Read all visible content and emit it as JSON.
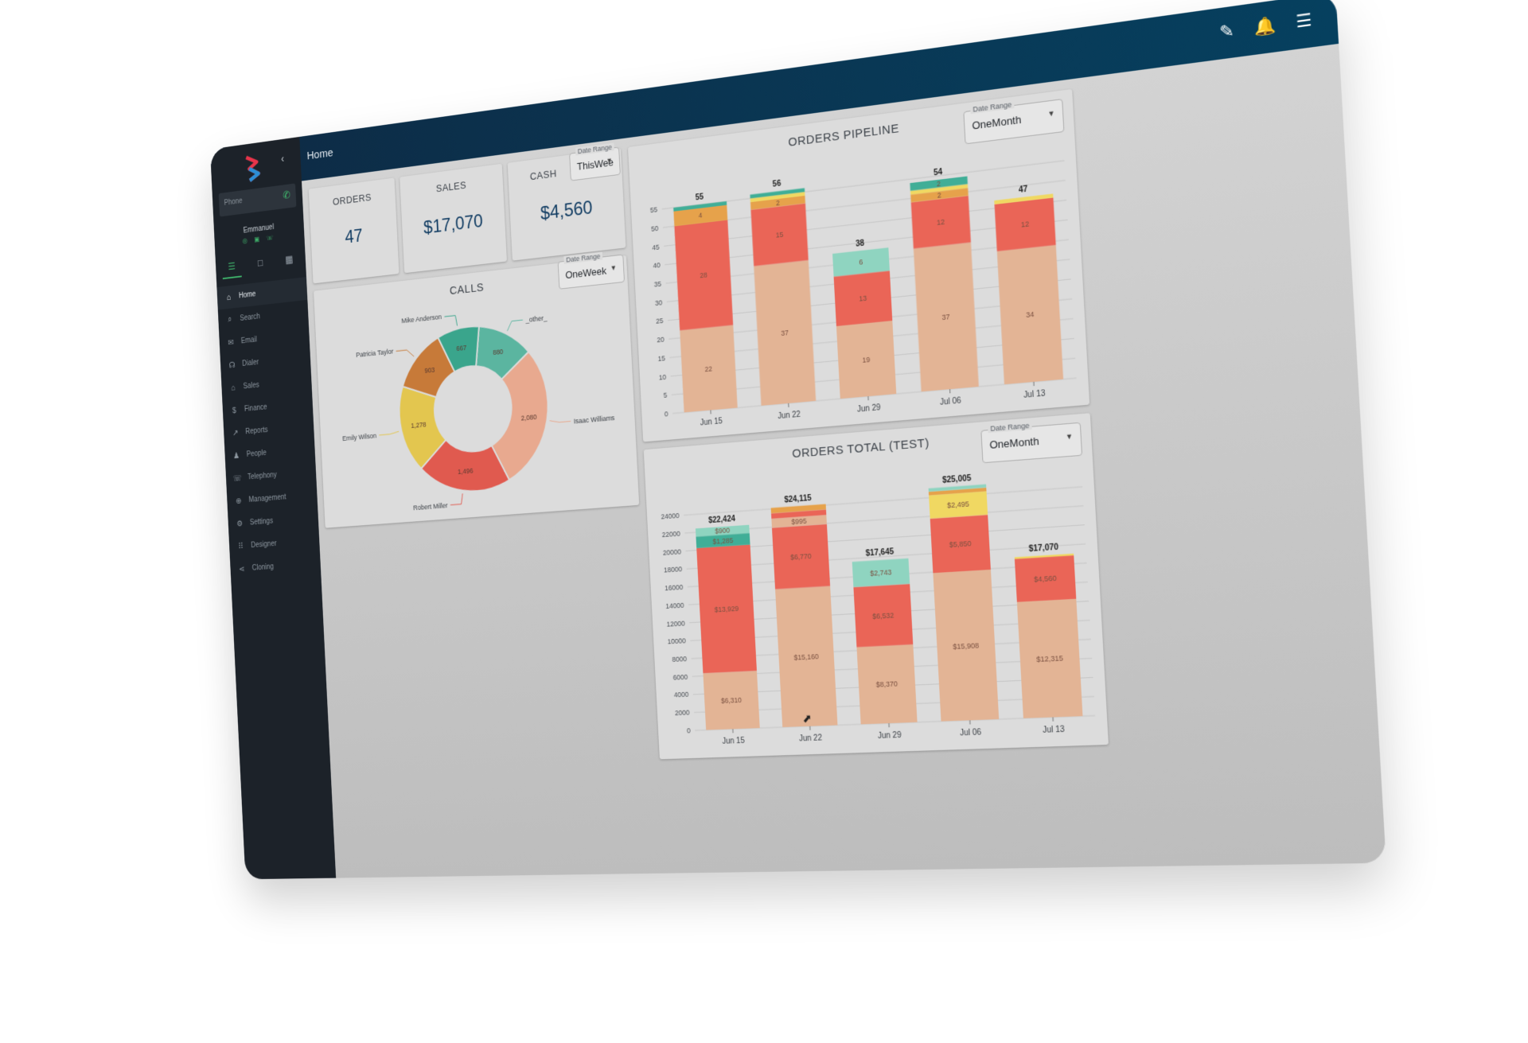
{
  "header": {
    "breadcrumb": "Home"
  },
  "sidebar": {
    "phone_label": "Phone",
    "user_name": "Emmanuel",
    "status_icons": "◎ ▣ ☏",
    "nav": [
      {
        "label": "Home",
        "icon": "⌂"
      },
      {
        "label": "Search",
        "icon": "⌕"
      },
      {
        "label": "Email",
        "icon": "✉"
      },
      {
        "label": "Dialer",
        "icon": "☊"
      },
      {
        "label": "Sales",
        "icon": "⌂"
      },
      {
        "label": "Finance",
        "icon": "$"
      },
      {
        "label": "Reports",
        "icon": "↗"
      },
      {
        "label": "People",
        "icon": "♟"
      },
      {
        "label": "Telephony",
        "icon": "☏"
      },
      {
        "label": "Management",
        "icon": "⊕"
      },
      {
        "label": "Settings",
        "icon": "⚙"
      },
      {
        "label": "Designer",
        "icon": "⠿"
      },
      {
        "label": "Cloning",
        "icon": "⋖"
      }
    ]
  },
  "kpis": {
    "orders": {
      "title": "ORDERS",
      "value": "47"
    },
    "sales": {
      "title": "SALES",
      "value": "$17,070"
    },
    "cash": {
      "title": "CASH",
      "value": "$4,560"
    },
    "date_range": {
      "label": "Date Range",
      "value": "ThisWee"
    }
  },
  "calls": {
    "title": "CALLS",
    "date_range": {
      "label": "Date Range",
      "value": "OneWeek"
    }
  },
  "pipeline": {
    "title": "ORDERS PIPELINE",
    "date_range": {
      "label": "Date Range",
      "value": "OneMonth"
    }
  },
  "totals": {
    "title": "ORDERS TOTAL (TEST)",
    "date_range": {
      "label": "Date Range",
      "value": "OneMonth"
    }
  },
  "colors": {
    "stage1": "#e3b495",
    "stage2": "#ea6557",
    "stage3": "#8fd4c0",
    "stage4": "#e6a24b",
    "stage5": "#f0d862",
    "stage6": "#40ae97",
    "pie": [
      "#5bb5a0",
      "#e8a98f",
      "#e05a4f",
      "#e3c64f",
      "#c77a39",
      "#3aa58c"
    ]
  },
  "chart_data": [
    {
      "id": "calls",
      "type": "pie",
      "title": "CALLS",
      "labels": [
        "_other_",
        "Isaac Williams",
        "Robert Miller",
        "Emily Wilson",
        "Patricia Taylor",
        "Mike Anderson"
      ],
      "values": [
        880,
        2080,
        1496,
        1278,
        903,
        667
      ],
      "value_labels": [
        "880",
        "2,080",
        "1,496",
        "1,278",
        "903",
        "667"
      ]
    },
    {
      "id": "pipeline",
      "type": "bar",
      "title": "ORDERS PIPELINE",
      "categories": [
        "Jun 15",
        "Jun 22",
        "Jun 29",
        "Jul 06",
        "Jul 13"
      ],
      "yticks": [
        0,
        5,
        10,
        15,
        20,
        25,
        30,
        35,
        40,
        45,
        50,
        55
      ],
      "ylim": [
        0,
        58
      ],
      "totals": [
        "55",
        "56",
        "38",
        "54",
        "47"
      ],
      "series": [
        {
          "name": "stage1",
          "color_key": "stage1",
          "values": [
            22,
            37,
            19,
            37,
            34
          ]
        },
        {
          "name": "stage2",
          "color_key": "stage2",
          "values": [
            28,
            15,
            13,
            12,
            12
          ]
        },
        {
          "name": "stage3",
          "color_key": "stage3",
          "values": [
            0,
            0,
            6,
            0,
            0
          ]
        },
        {
          "name": "stage4",
          "color_key": "stage4",
          "values": [
            4,
            2,
            0,
            2,
            0
          ]
        },
        {
          "name": "stage5",
          "color_key": "stage5",
          "values": [
            0,
            1,
            0,
            1,
            1
          ]
        },
        {
          "name": "stage6",
          "color_key": "stage6",
          "values": [
            1,
            1,
            0,
            2,
            0
          ]
        }
      ]
    },
    {
      "id": "totals",
      "type": "bar",
      "title": "ORDERS TOTAL (TEST)",
      "categories": [
        "Jun 15",
        "Jun 22",
        "Jun 29",
        "Jul 06",
        "Jul 13"
      ],
      "yticks": [
        0,
        2000,
        4000,
        6000,
        8000,
        10000,
        12000,
        14000,
        16000,
        18000,
        20000,
        22000,
        24000
      ],
      "ylim": [
        0,
        25500
      ],
      "totals": [
        "$22,424",
        "$24,115",
        "$17,645",
        "$25,005",
        "$17,070"
      ],
      "series": [
        {
          "name": "stage1",
          "color_key": "stage1",
          "values": [
            6310,
            15160,
            8370,
            15908,
            12315
          ],
          "labels": [
            "$6,310",
            "$15,160",
            "$8,370",
            "$15,908",
            "$12,315"
          ]
        },
        {
          "name": "stage2",
          "color_key": "stage2",
          "values": [
            13929,
            6770,
            6532,
            5850,
            4560
          ],
          "labels": [
            "$13,929",
            "$6,770",
            "$6,532",
            "$5,850",
            "$4,560"
          ]
        },
        {
          "name": "stage6",
          "color_key": "stage6",
          "values": [
            1285,
            0,
            0,
            0,
            0
          ],
          "labels": [
            "$1,285",
            "",
            "",
            "",
            ""
          ]
        },
        {
          "name": "stage3",
          "color_key": "stage3",
          "values": [
            900,
            0,
            2743,
            0,
            0
          ],
          "labels": [
            "$900",
            "",
            "$2,743",
            "",
            ""
          ]
        },
        {
          "name": "stage1b",
          "color_key": "stage1",
          "values": [
            0,
            995,
            0,
            0,
            0
          ],
          "labels": [
            "",
            "$995",
            "",
            "",
            ""
          ]
        },
        {
          "name": "stage5",
          "color_key": "stage5",
          "values": [
            0,
            0,
            0,
            2495,
            195
          ],
          "labels": [
            "",
            "",
            "",
            "$2,495",
            ""
          ]
        },
        {
          "name": "stage2b",
          "color_key": "stage2",
          "values": [
            0,
            600,
            0,
            0,
            0
          ],
          "labels": [
            "",
            "",
            "",
            "",
            ""
          ]
        },
        {
          "name": "stage4",
          "color_key": "stage4",
          "values": [
            0,
            590,
            0,
            400,
            0
          ],
          "labels": [
            "",
            "",
            "",
            "",
            ""
          ]
        },
        {
          "name": "stage3b",
          "color_key": "stage3",
          "values": [
            0,
            0,
            0,
            352,
            0
          ],
          "labels": [
            "",
            "",
            "",
            "",
            ""
          ]
        }
      ]
    }
  ]
}
